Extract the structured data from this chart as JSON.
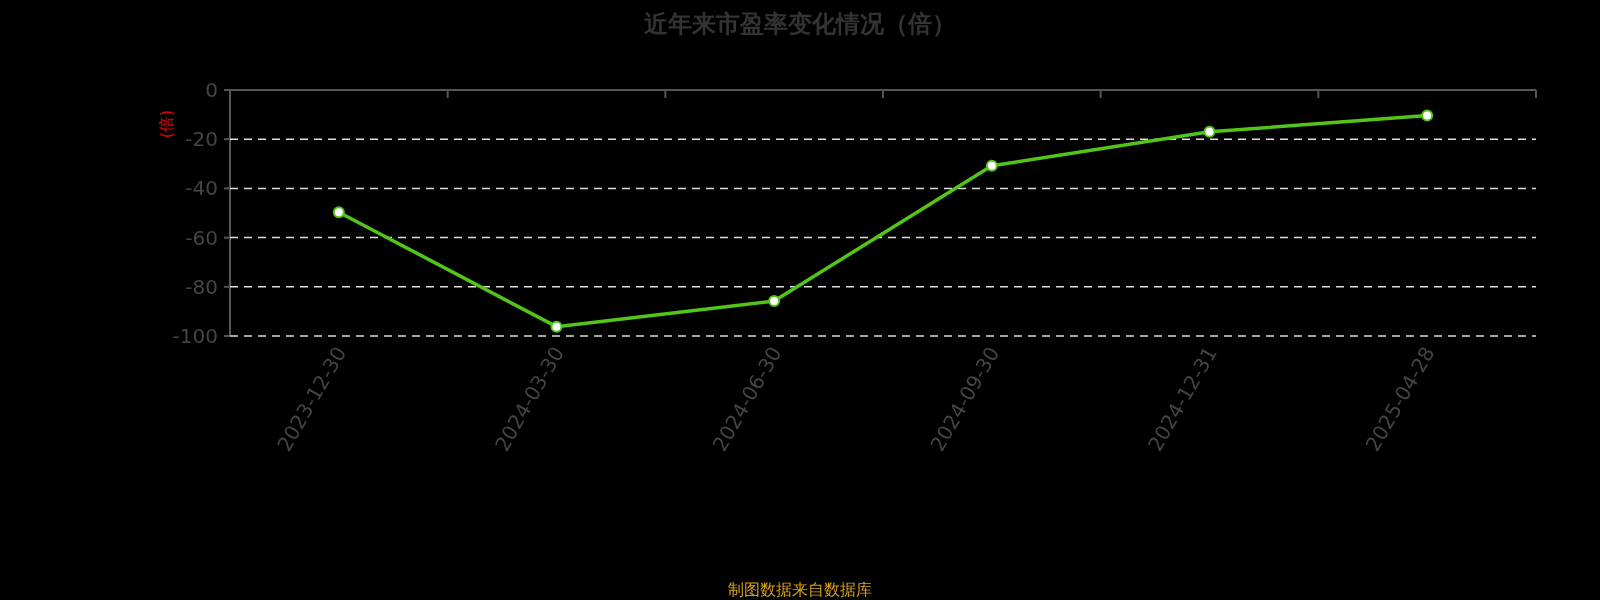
{
  "chart_data": {
    "type": "line",
    "title": "近年来市盈率变化情况（倍）",
    "ylabel": "(倍)",
    "categories": [
      "2023-12-30",
      "2024-03-30",
      "2024-06-30",
      "2024-09-30",
      "2024-12-31",
      "2025-04-28"
    ],
    "series": [
      {
        "color": "#52c41a",
        "values": [
          -49.7,
          -96.2,
          -85.8,
          -30.8,
          -17.0,
          -10.4
        ]
      }
    ],
    "ylim": [
      -100,
      0
    ],
    "yticks": [
      -100,
      -80,
      -60,
      -40,
      -20,
      0
    ],
    "grid": "y",
    "marker": "circle",
    "line_style": "solid",
    "annotations": [
      "制图数据来自数据库"
    ]
  }
}
